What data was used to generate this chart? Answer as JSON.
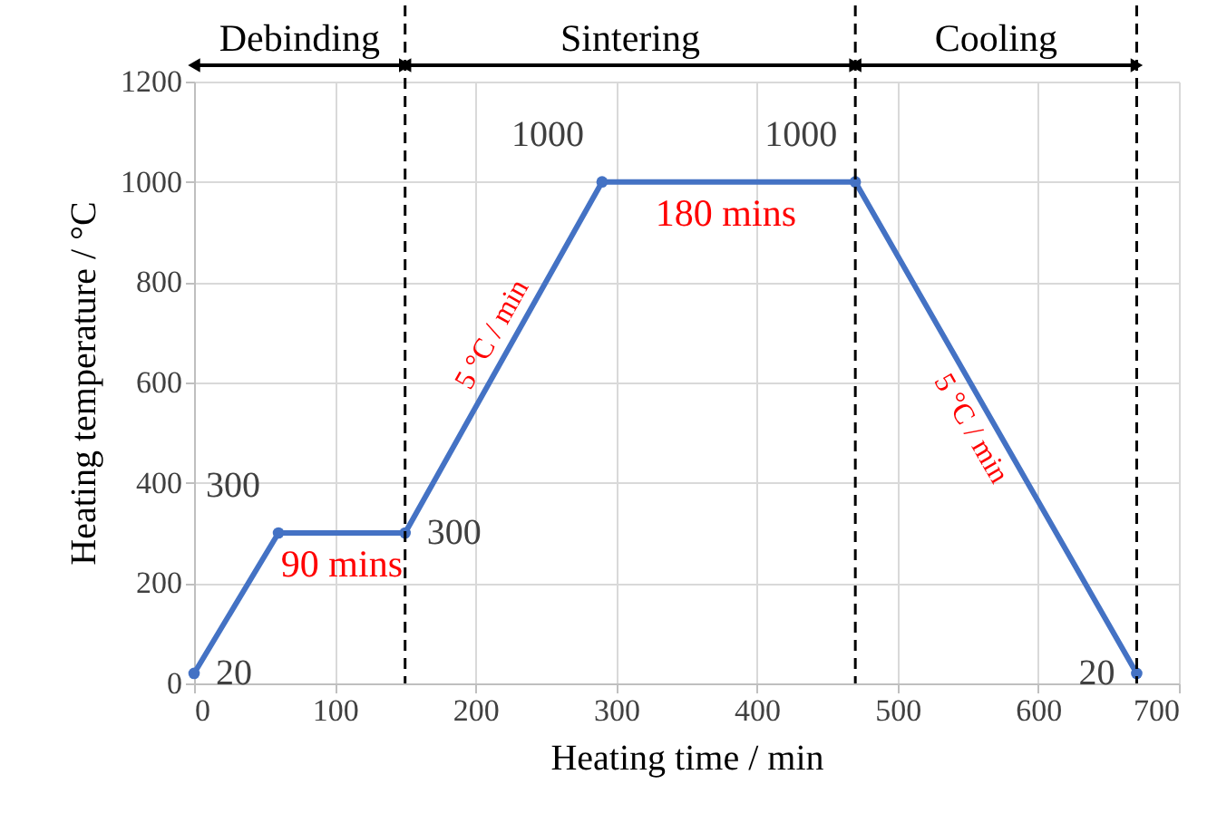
{
  "chart_data": {
    "type": "line",
    "xlabel": "Heating time / min",
    "ylabel": "Heating temperature / °C",
    "x": [
      0,
      60,
      150,
      290,
      470,
      670
    ],
    "series": [
      {
        "color": "#4472c4",
        "values": [
          20,
          300,
          300,
          1000,
          1000,
          20
        ],
        "value_labels": [
          "20",
          "300",
          "300",
          "1000",
          "1000",
          "20"
        ]
      }
    ],
    "xlim": [
      0,
      700
    ],
    "xticks": [
      0,
      100,
      200,
      300,
      400,
      500,
      600,
      700
    ],
    "ylim": [
      0,
      1200
    ],
    "yticks": [
      0,
      200,
      400,
      600,
      800,
      {
        "value": 1000,
        "label": "1000"
      },
      {
        "value": 1200,
        "label": "1200"
      }
    ],
    "grid": true,
    "marker": "circle",
    "line_style": "solid",
    "ref_lines": [
      {
        "axis": "x",
        "value": 150,
        "line_style": "dashed",
        "color": "#000000"
      },
      {
        "axis": "x",
        "value": 470,
        "line_style": "dashed",
        "color": "#000000"
      },
      {
        "axis": "x",
        "value": 670,
        "line_style": "dashed",
        "color": "#000000"
      }
    ],
    "annotations": [
      "Debinding",
      "Sintering",
      "Cooling",
      {
        "text": "90 mins",
        "x": 105,
        "y": 300
      },
      {
        "text": "180 mins",
        "x": 378,
        "y": 1000
      },
      {
        "text": "5 °C / min",
        "x": 225,
        "y": 675
      },
      {
        "text": "5 °C / min",
        "x": 566,
        "y": 530
      }
    ]
  }
}
